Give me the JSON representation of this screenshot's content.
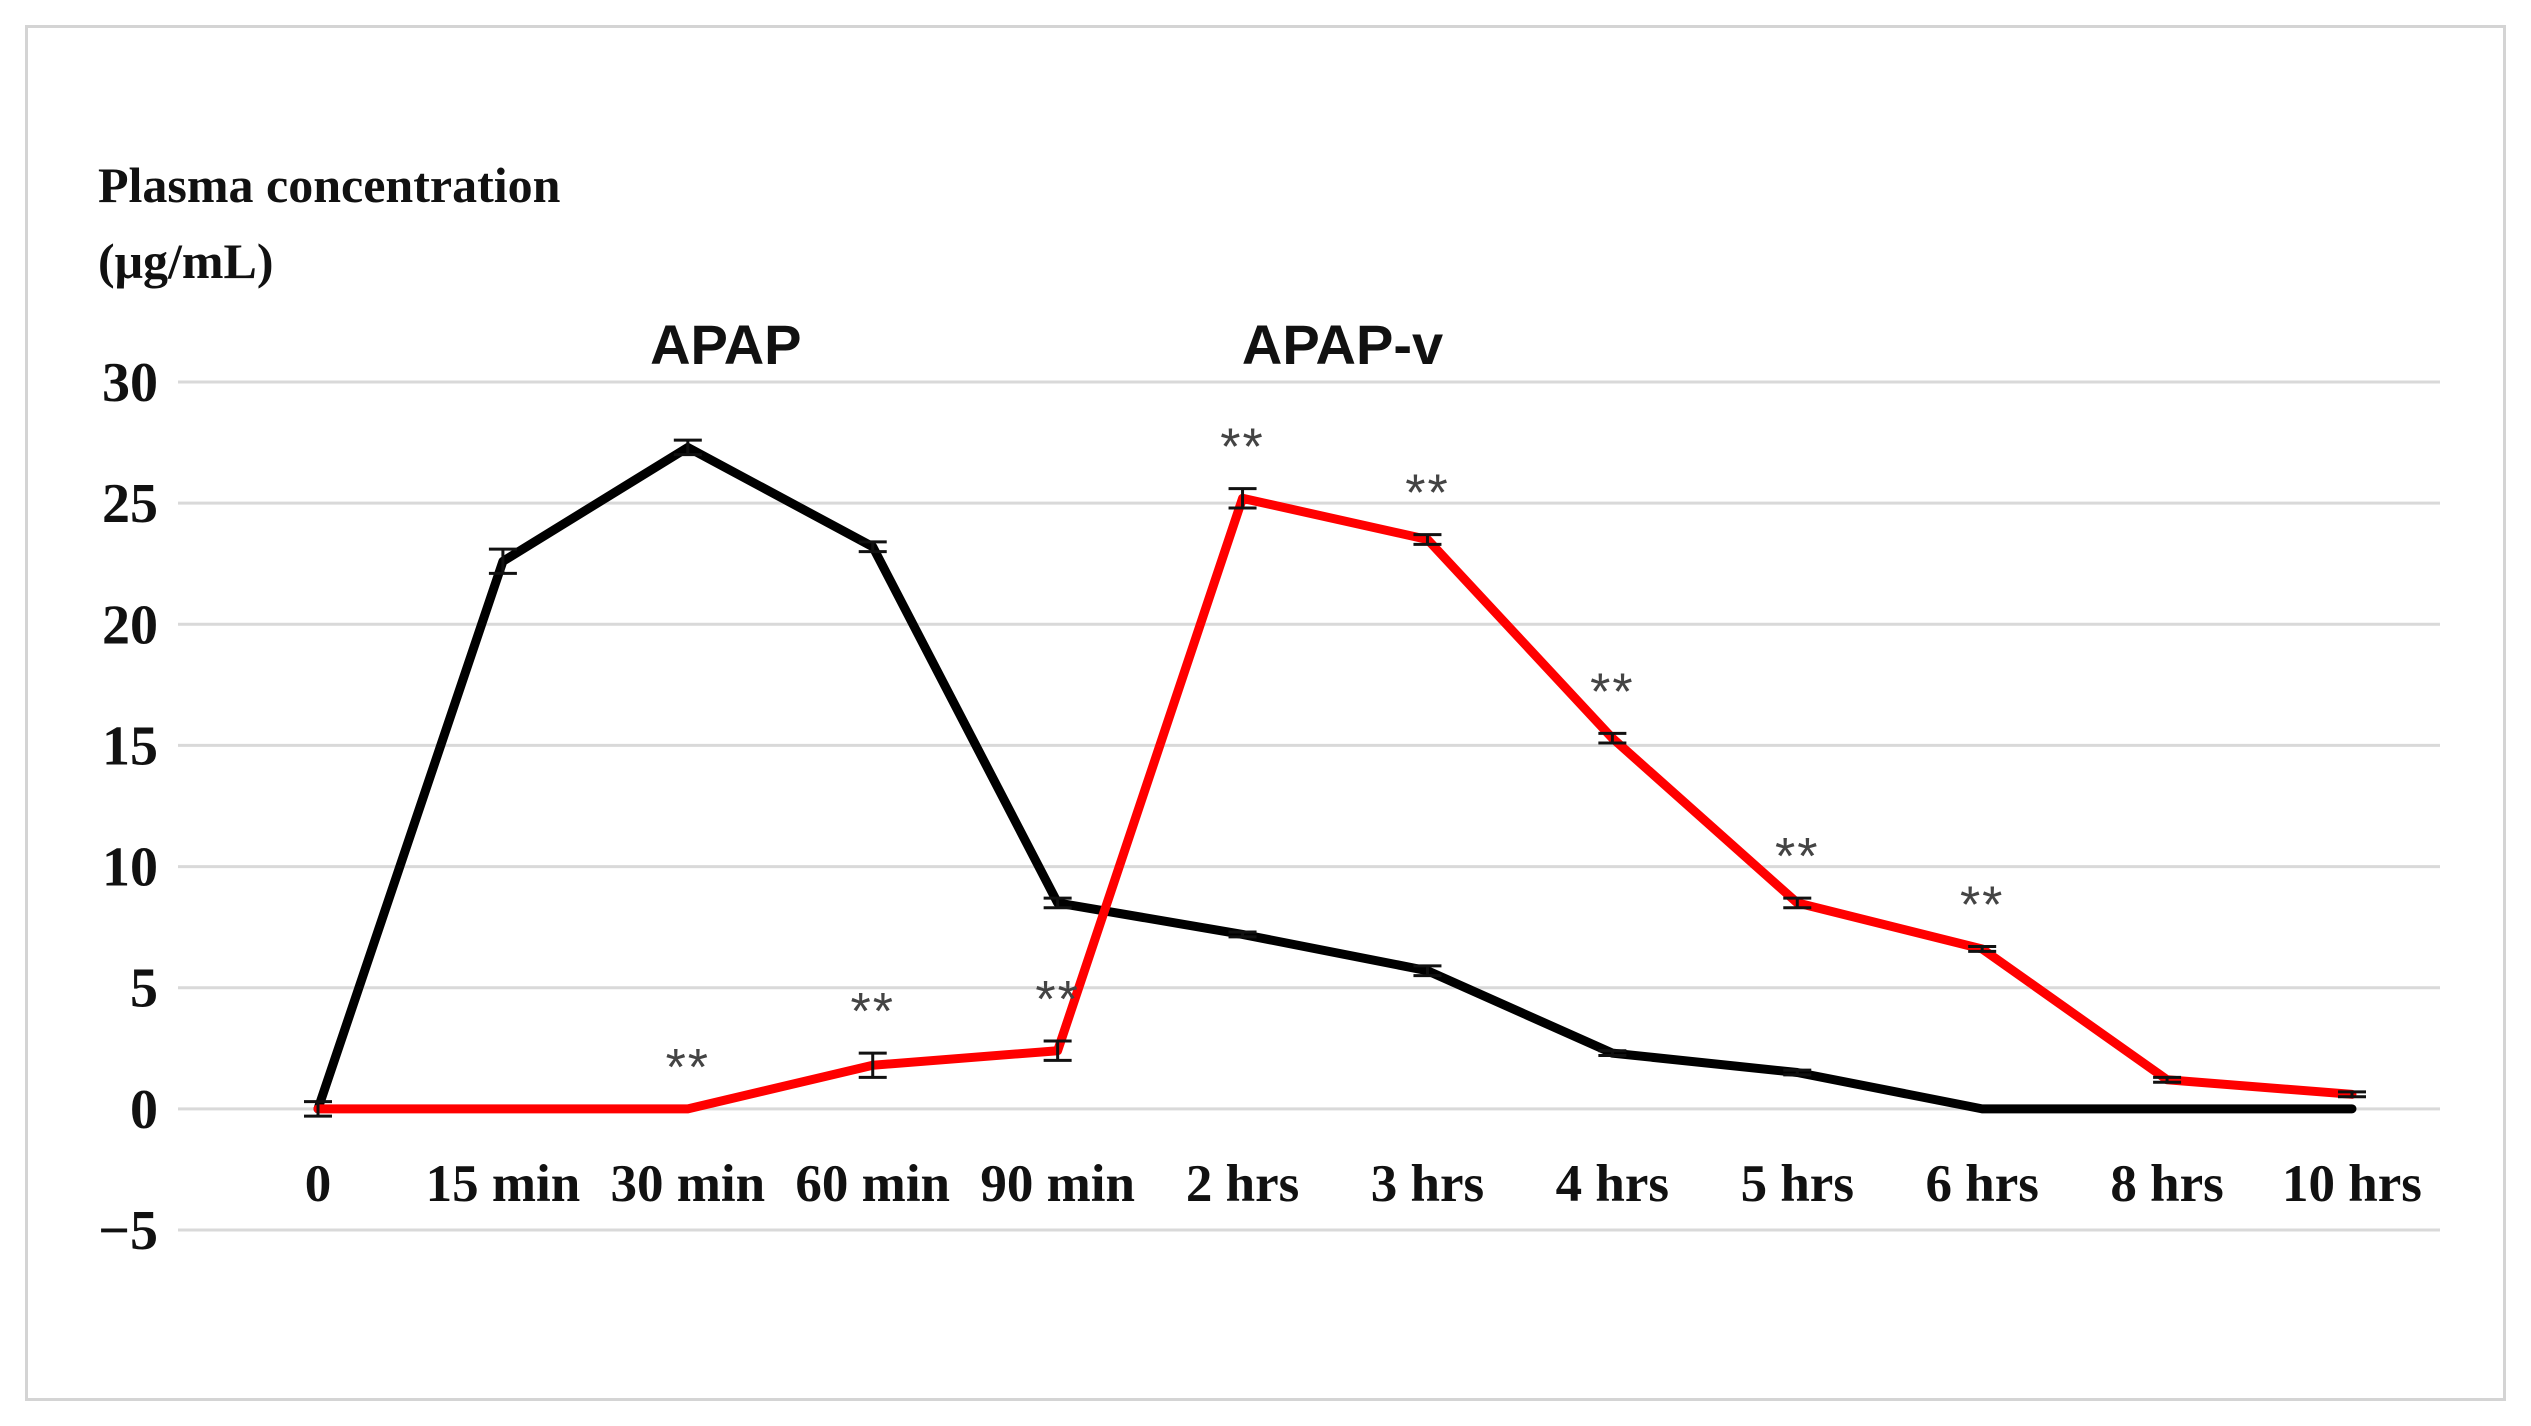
{
  "chart_data": {
    "type": "line",
    "ylabel_line1": "Plasma concentration",
    "ylabel_line2": "(μg/mL)",
    "categories": [
      "0",
      "15 min",
      "30 min",
      "60 min",
      "90 min",
      "2 hrs",
      "3 hrs",
      "4 hrs",
      "5 hrs",
      "6 hrs",
      "8 hrs",
      "10 hrs"
    ],
    "yticks": [
      "30",
      "25",
      "20",
      "15",
      "10",
      "5",
      "0",
      "−5"
    ],
    "ylim": [
      -5,
      30
    ],
    "grid": true,
    "series": [
      {
        "name": "APAP",
        "color": "#000000",
        "values": [
          0,
          22.6,
          27.3,
          23.2,
          8.5,
          7.2,
          5.7,
          2.3,
          1.5,
          0,
          0,
          0
        ],
        "errors": [
          0.3,
          0.5,
          0.3,
          0.2,
          0.2,
          0.1,
          0.2,
          0.1,
          0.1,
          0,
          0,
          0
        ]
      },
      {
        "name": "APAP-v",
        "color": "#ff0000",
        "values": [
          0,
          0,
          0,
          1.8,
          2.4,
          25.2,
          23.5,
          15.3,
          8.5,
          6.6,
          1.2,
          0.6
        ],
        "errors": [
          0,
          0,
          0,
          0.5,
          0.4,
          0.4,
          0.2,
          0.2,
          0.2,
          0.1,
          0.1,
          0.1
        ],
        "significance": [
          "",
          "",
          "**",
          "**",
          "**",
          "**",
          "**",
          "**",
          "**",
          "**",
          "",
          ""
        ]
      }
    ]
  }
}
